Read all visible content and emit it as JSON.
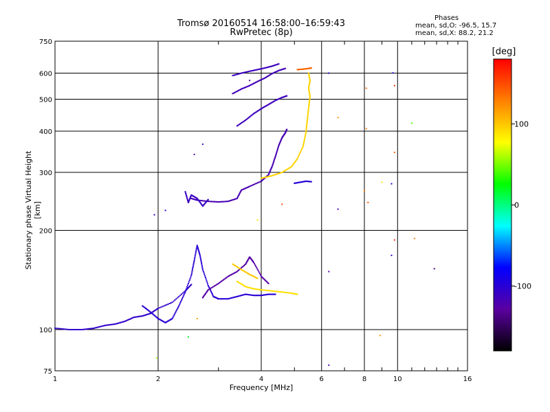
{
  "header": {
    "title_line1": "Tromsø 20160514 16:58:00–16:59:43",
    "title_line2": "RwPretec (8p)"
  },
  "stats": {
    "heading": "Phases",
    "o_mode": "mean, sd,O: -96.5, 15.7",
    "x_mode": "mean, sd,X:  88.2, 21.2"
  },
  "colorbar": {
    "label": "[deg]",
    "ticks": [
      {
        "value": 100,
        "label": "100"
      },
      {
        "value": 0,
        "label": "0"
      },
      {
        "value": -100,
        "label": "-100"
      }
    ],
    "range": [
      -180,
      180
    ],
    "colors": [
      "#000000",
      "#5a00a0",
      "#0000ff",
      "#00ffff",
      "#00ff00",
      "#ffff00",
      "#ff8000",
      "#ff0000"
    ]
  },
  "chart_data": {
    "type": "scatter",
    "title": "Tromsø 20160514 16:58:00–16:59:43",
    "subtitle": "RwPretec (8p)",
    "xlabel": "Frequency [MHz]",
    "ylabel": "Stationary phase Virtual Height [km]",
    "x_scale": "log",
    "y_scale": "log",
    "xlim": [
      1,
      16
    ],
    "ylim": [
      75,
      750
    ],
    "x_ticks": [
      {
        "value": 1,
        "label": "1"
      },
      {
        "value": 2,
        "label": "2"
      },
      {
        "value": 4,
        "label": "4"
      },
      {
        "value": 6,
        "label": "6"
      },
      {
        "value": 8,
        "label": "8"
      },
      {
        "value": 10,
        "label": "10"
      },
      {
        "value": 16,
        "label": "16"
      }
    ],
    "y_ticks": [
      {
        "value": 75,
        "label": "75"
      },
      {
        "value": 100,
        "label": "100"
      },
      {
        "value": 200,
        "label": "200"
      },
      {
        "value": 300,
        "label": "300"
      },
      {
        "value": 400,
        "label": "400"
      },
      {
        "value": 500,
        "label": "500"
      },
      {
        "value": 600,
        "label": "600"
      },
      {
        "value": 750,
        "label": "750"
      }
    ],
    "x_minor_ticks": [
      3,
      5,
      7,
      9,
      11,
      12,
      13,
      14,
      15
    ],
    "grid": true,
    "color_value": "phase [deg]",
    "traces": [
      {
        "phase": -105,
        "points": [
          [
            1.0,
            101
          ],
          [
            1.1,
            100
          ],
          [
            1.2,
            100
          ],
          [
            1.3,
            101
          ],
          [
            1.4,
            103
          ],
          [
            1.5,
            104
          ],
          [
            1.6,
            106
          ],
          [
            1.7,
            109
          ],
          [
            1.8,
            110
          ],
          [
            1.9,
            112
          ],
          [
            2.0,
            116
          ],
          [
            2.2,
            121
          ],
          [
            2.4,
            131
          ],
          [
            2.5,
            137
          ]
        ]
      },
      {
        "phase": -100,
        "points": [
          [
            1.8,
            118
          ],
          [
            1.9,
            113
          ],
          [
            2.0,
            108
          ],
          [
            2.1,
            105
          ],
          [
            2.2,
            108
          ],
          [
            2.3,
            118
          ],
          [
            2.4,
            130
          ],
          [
            2.5,
            146
          ],
          [
            2.55,
            162
          ],
          [
            2.6,
            180
          ],
          [
            2.65,
            168
          ],
          [
            2.7,
            152
          ],
          [
            2.8,
            136
          ],
          [
            2.9,
            126
          ],
          [
            3.0,
            124
          ],
          [
            3.2,
            124
          ],
          [
            3.4,
            126
          ],
          [
            3.6,
            128
          ],
          [
            3.8,
            127
          ],
          [
            4.0,
            127
          ],
          [
            4.2,
            128
          ],
          [
            4.4,
            128
          ]
        ]
      },
      {
        "phase": -125,
        "points": [
          [
            2.7,
            125
          ],
          [
            2.8,
            132
          ],
          [
            3.0,
            138
          ],
          [
            3.2,
            145
          ],
          [
            3.4,
            150
          ],
          [
            3.6,
            158
          ],
          [
            3.7,
            166
          ],
          [
            3.8,
            160
          ],
          [
            4.0,
            145
          ],
          [
            4.2,
            138
          ]
        ]
      },
      {
        "phase": -118,
        "points": [
          [
            2.5,
            250
          ],
          [
            2.6,
            247
          ],
          [
            2.8,
            245
          ],
          [
            3.0,
            244
          ],
          [
            3.2,
            245
          ],
          [
            3.4,
            250
          ],
          [
            3.5,
            265
          ],
          [
            3.7,
            272
          ],
          [
            4.0,
            282
          ],
          [
            4.2,
            295
          ],
          [
            4.3,
            312
          ],
          [
            4.4,
            335
          ],
          [
            4.5,
            362
          ],
          [
            4.6,
            382
          ],
          [
            4.7,
            395
          ],
          [
            4.75,
            405
          ]
        ]
      },
      {
        "phase": -110,
        "points": [
          [
            2.4,
            262
          ],
          [
            2.45,
            243
          ],
          [
            2.5,
            256
          ],
          [
            2.6,
            250
          ],
          [
            2.7,
            237
          ],
          [
            2.8,
            248
          ]
        ]
      },
      {
        "phase": -112,
        "points": [
          [
            3.4,
            415
          ],
          [
            3.6,
            432
          ],
          [
            3.8,
            452
          ],
          [
            4.0,
            468
          ],
          [
            4.2,
            482
          ],
          [
            4.4,
            496
          ],
          [
            4.6,
            506
          ],
          [
            4.75,
            512
          ]
        ]
      },
      {
        "phase": -115,
        "points": [
          [
            3.3,
            520
          ],
          [
            3.5,
            537
          ],
          [
            3.7,
            550
          ],
          [
            3.9,
            566
          ],
          [
            4.1,
            580
          ],
          [
            4.3,
            598
          ],
          [
            4.5,
            611
          ],
          [
            4.7,
            620
          ]
        ]
      },
      {
        "phase": -112,
        "points": [
          [
            3.3,
            590
          ],
          [
            3.5,
            600
          ],
          [
            3.7,
            608
          ],
          [
            3.9,
            615
          ],
          [
            4.1,
            622
          ],
          [
            4.3,
            630
          ],
          [
            4.5,
            640
          ]
        ]
      },
      {
        "phase": 95,
        "points": [
          [
            4.0,
            288
          ],
          [
            4.3,
            293
          ],
          [
            4.6,
            300
          ],
          [
            4.9,
            312
          ],
          [
            5.1,
            330
          ],
          [
            5.3,
            360
          ],
          [
            5.4,
            395
          ],
          [
            5.45,
            430
          ],
          [
            5.5,
            470
          ],
          [
            5.55,
            510
          ],
          [
            5.5,
            540
          ],
          [
            5.55,
            570
          ],
          [
            5.5,
            600
          ]
        ]
      },
      {
        "phase": 90,
        "points": [
          [
            3.4,
            140
          ],
          [
            3.6,
            135
          ],
          [
            3.8,
            133
          ],
          [
            4.0,
            132
          ],
          [
            4.3,
            131
          ],
          [
            4.6,
            130
          ],
          [
            4.9,
            129
          ],
          [
            5.1,
            128
          ]
        ]
      },
      {
        "phase": 100,
        "points": [
          [
            3.3,
            158
          ],
          [
            3.5,
            152
          ],
          [
            3.7,
            147
          ],
          [
            3.9,
            143
          ]
        ]
      },
      {
        "phase": 140,
        "points": [
          [
            5.1,
            615
          ],
          [
            5.3,
            617
          ],
          [
            5.5,
            620
          ],
          [
            5.6,
            622
          ]
        ]
      },
      {
        "phase": -98,
        "points": [
          [
            5.0,
            278
          ],
          [
            5.2,
            280
          ],
          [
            5.4,
            282
          ],
          [
            5.6,
            281
          ]
        ]
      }
    ],
    "scatter_points": [
      {
        "x": 2.55,
        "y": 340,
        "phase": -130
      },
      {
        "x": 2.7,
        "y": 365,
        "phase": -110
      },
      {
        "x": 1.95,
        "y": 223,
        "phase": -110
      },
      {
        "x": 2.1,
        "y": 230,
        "phase": -100
      },
      {
        "x": 1.98,
        "y": 82,
        "phase": 60
      },
      {
        "x": 2.45,
        "y": 95,
        "phase": 20
      },
      {
        "x": 2.6,
        "y": 108,
        "phase": 110
      },
      {
        "x": 6.3,
        "y": 78,
        "phase": -120
      },
      {
        "x": 6.3,
        "y": 600,
        "phase": -100
      },
      {
        "x": 6.7,
        "y": 440,
        "phase": 120
      },
      {
        "x": 6.7,
        "y": 232,
        "phase": -120
      },
      {
        "x": 6.3,
        "y": 150,
        "phase": -130
      },
      {
        "x": 8.1,
        "y": 540,
        "phase": 140
      },
      {
        "x": 8.1,
        "y": 407,
        "phase": 130
      },
      {
        "x": 8.0,
        "y": 264,
        "phase": 130
      },
      {
        "x": 8.2,
        "y": 243,
        "phase": 150
      },
      {
        "x": 8.9,
        "y": 96,
        "phase": 120
      },
      {
        "x": 9.0,
        "y": 280,
        "phase": 90
      },
      {
        "x": 9.6,
        "y": 277,
        "phase": -100
      },
      {
        "x": 9.7,
        "y": 601,
        "phase": -100
      },
      {
        "x": 9.8,
        "y": 550,
        "phase": 160
      },
      {
        "x": 9.8,
        "y": 345,
        "phase": 140
      },
      {
        "x": 9.8,
        "y": 187,
        "phase": 160
      },
      {
        "x": 9.6,
        "y": 168,
        "phase": -110
      },
      {
        "x": 11.0,
        "y": 423,
        "phase": 40
      },
      {
        "x": 11.2,
        "y": 189,
        "phase": 130
      },
      {
        "x": 12.8,
        "y": 153,
        "phase": -140
      },
      {
        "x": 4.6,
        "y": 240,
        "phase": 150
      },
      {
        "x": 3.9,
        "y": 215,
        "phase": 90
      },
      {
        "x": 3.7,
        "y": 570,
        "phase": -120
      }
    ]
  }
}
